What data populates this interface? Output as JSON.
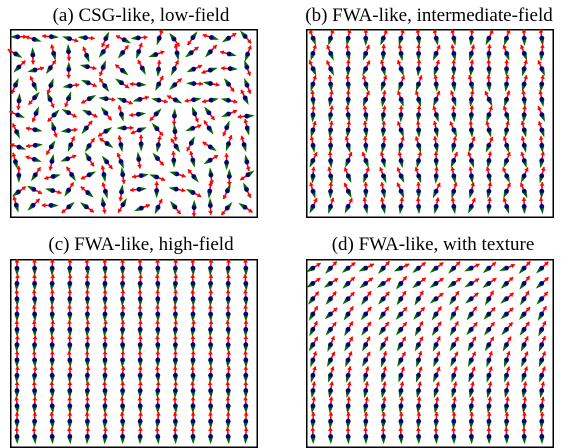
{
  "panels": [
    {
      "title": "(a) CSG-like, low-field",
      "pattern": "random"
    },
    {
      "title": "(b) FWA-like, intermediate-field",
      "pattern": "fan"
    },
    {
      "title": "(c) FWA-like, high-field",
      "pattern": "aligned"
    },
    {
      "title": "(d) FWA-like, with texture",
      "pattern": "texture"
    }
  ],
  "colors": {
    "arrow": "#ff0000",
    "tail": "#006400",
    "dot": "#000080",
    "frame": "#000000"
  }
}
